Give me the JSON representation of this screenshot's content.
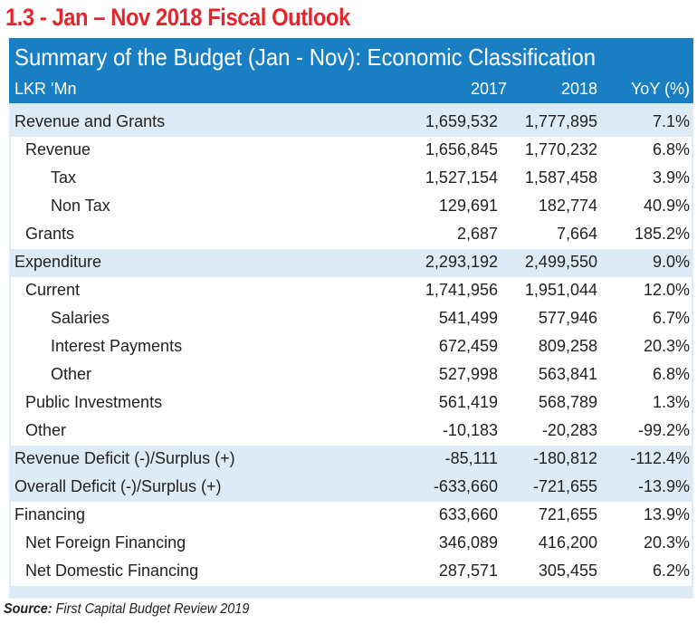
{
  "title": "1.3 - Jan – Nov 2018 Fiscal Outlook",
  "table": {
    "caption": "Summary of the Budget (Jan - Nov): Economic Classification",
    "unit": "LKR 'Mn",
    "col_2017": "2017",
    "col_2018": "2018",
    "col_yoy": "YoY (%)",
    "rows": [
      {
        "label": "Revenue and Grants",
        "v2017": "1,659,532",
        "v2018": "1,777,895",
        "yoy": "7.1%"
      },
      {
        "label": "Revenue",
        "v2017": "1,656,845",
        "v2018": "1,770,232",
        "yoy": "6.8%"
      },
      {
        "label": "Tax",
        "v2017": "1,527,154",
        "v2018": "1,587,458",
        "yoy": "3.9%"
      },
      {
        "label": "Non Tax",
        "v2017": "129,691",
        "v2018": "182,774",
        "yoy": "40.9%"
      },
      {
        "label": "Grants",
        "v2017": "2,687",
        "v2018": "7,664",
        "yoy": "185.2%"
      },
      {
        "label": "Expenditure",
        "v2017": "2,293,192",
        "v2018": "2,499,550",
        "yoy": "9.0%"
      },
      {
        "label": "Current",
        "v2017": "1,741,956",
        "v2018": "1,951,044",
        "yoy": "12.0%"
      },
      {
        "label": "Salaries",
        "v2017": "541,499",
        "v2018": "577,946",
        "yoy": "6.7%"
      },
      {
        "label": "Interest Payments",
        "v2017": "672,459",
        "v2018": "809,258",
        "yoy": "20.3%"
      },
      {
        "label": "Other",
        "v2017": "527,998",
        "v2018": "563,841",
        "yoy": "6.8%"
      },
      {
        "label": "Public Investments",
        "v2017": "561,419",
        "v2018": "568,789",
        "yoy": "1.3%"
      },
      {
        "label": "Other",
        "v2017": "-10,183",
        "v2018": "-20,283",
        "yoy": "-99.2%"
      },
      {
        "label": "Revenue Deficit (-)/Surplus (+)",
        "v2017": "-85,111",
        "v2018": "-180,812",
        "yoy": "-112.4%"
      },
      {
        "label": "Overall Deficit (-)/Surplus (+)",
        "v2017": "-633,660",
        "v2018": "-721,655",
        "yoy": "-13.9%"
      },
      {
        "label": "Financing",
        "v2017": "633,660",
        "v2018": "721,655",
        "yoy": "13.9%"
      },
      {
        "label": "Net Foreign Financing",
        "v2017": "346,089",
        "v2018": "416,200",
        "yoy": "20.3%"
      },
      {
        "label": "Net Domestic Financing",
        "v2017": "287,571",
        "v2018": "305,455",
        "yoy": "6.2%"
      }
    ]
  },
  "source": {
    "label": "Source:",
    "text": "First Capital Budget Review 2019"
  },
  "colors": {
    "title_red": "#e3262d",
    "banner_blue": "#1a7fc2",
    "shade_blue": "#dcebf6"
  }
}
